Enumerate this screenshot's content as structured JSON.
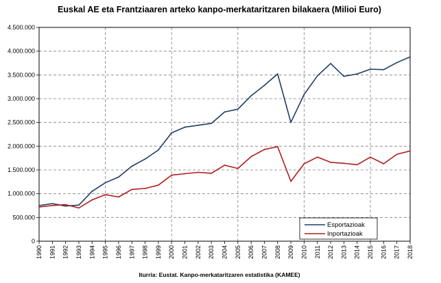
{
  "chart_data": {
    "type": "line",
    "title": "Euskal AE eta Frantziaaren arteko kanpo-merkataritzaren bilakaera (Milioi Euro)",
    "source": "Iturria: Eustat. Kanpo-merkataritzaren estatistika (KAMEE)",
    "x": [
      "1990",
      "1991",
      "1992",
      "1993",
      "1994",
      "1995",
      "1996",
      "1997",
      "1998",
      "1999",
      "2000",
      "2001",
      "2002",
      "2003",
      "2004",
      "2005",
      "2006",
      "2007",
      "2008",
      "2009",
      "2010",
      "2011",
      "2012",
      "2013",
      "2014",
      "2015",
      "2016",
      "2017",
      "2018"
    ],
    "y_ticks": [
      0,
      500000,
      1000000,
      1500000,
      2000000,
      2500000,
      3000000,
      3500000,
      4000000,
      4500000
    ],
    "y_tick_labels": [
      "0",
      "500.000",
      "1.000.000",
      "1.500.000",
      "2.000.000",
      "2.500.000",
      "3.000.000",
      "3.500.000",
      "4.000.000",
      "4.500.000"
    ],
    "ylim": [
      0,
      4500000
    ],
    "grid": "dashed",
    "legend_position": "bottom-right",
    "series": [
      {
        "name": "Esportazioak",
        "color": "#1f3b63",
        "values": [
          750000,
          790000,
          740000,
          760000,
          1050000,
          1230000,
          1350000,
          1580000,
          1730000,
          1920000,
          2280000,
          2400000,
          2440000,
          2480000,
          2720000,
          2780000,
          3060000,
          3280000,
          3520000,
          2500000,
          3090000,
          3480000,
          3740000,
          3470000,
          3520000,
          3620000,
          3610000,
          3760000,
          3880000
        ]
      },
      {
        "name": "Inportazioak",
        "color": "#b01c1c",
        "values": [
          720000,
          750000,
          770000,
          700000,
          870000,
          980000,
          930000,
          1090000,
          1110000,
          1180000,
          1390000,
          1420000,
          1450000,
          1430000,
          1600000,
          1530000,
          1780000,
          1930000,
          1990000,
          1260000,
          1630000,
          1770000,
          1660000,
          1640000,
          1610000,
          1770000,
          1630000,
          1830000,
          1900000
        ]
      }
    ]
  }
}
